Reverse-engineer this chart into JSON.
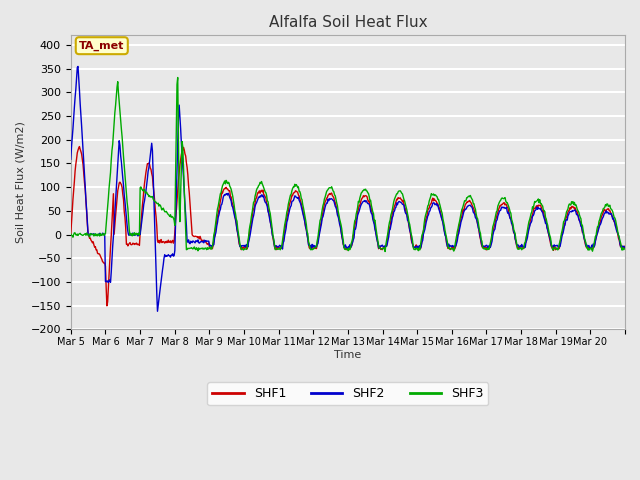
{
  "title": "Alfalfa Soil Heat Flux",
  "ylabel": "Soil Heat Flux (W/m2)",
  "xlabel": "Time",
  "ylim": [
    -200,
    420
  ],
  "yticks": [
    -200,
    -150,
    -100,
    -50,
    0,
    50,
    100,
    150,
    200,
    250,
    300,
    350,
    400
  ],
  "background_color": "#e8e8e8",
  "plot_bg_color": "#e8e8e8",
  "grid_color": "white",
  "title_color": "#333333",
  "annotation_text": "TA_met",
  "annotation_bg": "#ffffcc",
  "annotation_border": "#ccaa00",
  "line_colors": {
    "SHF1": "#cc0000",
    "SHF2": "#0000cc",
    "SHF3": "#00aa00"
  },
  "legend_labels": [
    "SHF1",
    "SHF2",
    "SHF3"
  ],
  "tick_positions": [
    0,
    1,
    2,
    3,
    4,
    5,
    6,
    7,
    8,
    9,
    10,
    11,
    12,
    13,
    14,
    15,
    16
  ],
  "tick_labels": [
    "Mar 5",
    "Mar 6",
    "Mar 7",
    "Mar 8",
    "Mar 9",
    "Mar 10",
    "Mar 11",
    "Mar 12",
    "Mar 13",
    "Mar 14",
    "Mar 15",
    "Mar 16",
    "Mar 17",
    "Mar 18",
    "Mar 19",
    "Mar 20",
    ""
  ]
}
